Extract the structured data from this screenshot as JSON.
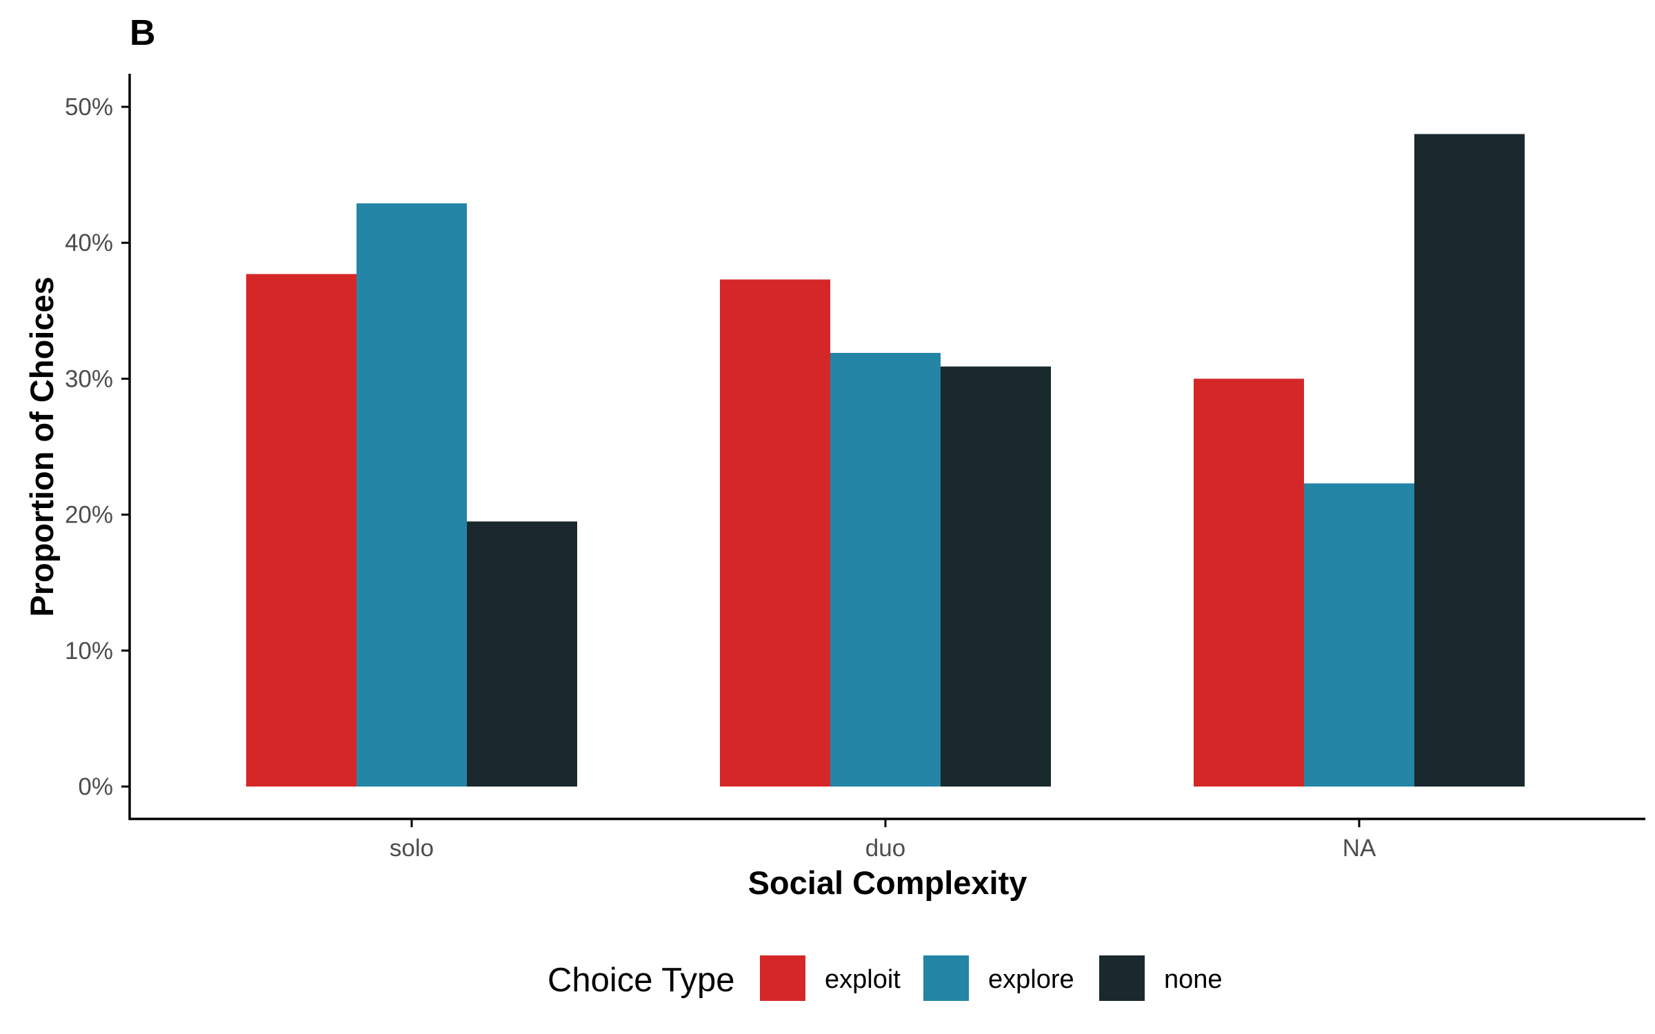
{
  "chart_data": {
    "type": "bar",
    "panel_label": "B",
    "xlabel": "Social Complexity",
    "ylabel": "Proportion of Choices",
    "categories": [
      "solo",
      "duo",
      "NA"
    ],
    "ylim": [
      0,
      52.5
    ],
    "yticks": [
      0,
      10,
      20,
      30,
      40,
      50
    ],
    "ytick_labels": [
      "0%",
      "10%",
      "20%",
      "30%",
      "40%",
      "50%"
    ],
    "grid": false,
    "legend": {
      "title": "Choice Type",
      "position": "bottom"
    },
    "series": [
      {
        "name": "exploit",
        "color": "#D62728",
        "values": [
          37.7,
          37.3,
          30.0
        ]
      },
      {
        "name": "explore",
        "color": "#2485A6",
        "values": [
          42.9,
          31.9,
          22.3
        ]
      },
      {
        "name": "none",
        "color": "#1A292E",
        "values": [
          19.5,
          30.9,
          48.0
        ]
      }
    ]
  }
}
